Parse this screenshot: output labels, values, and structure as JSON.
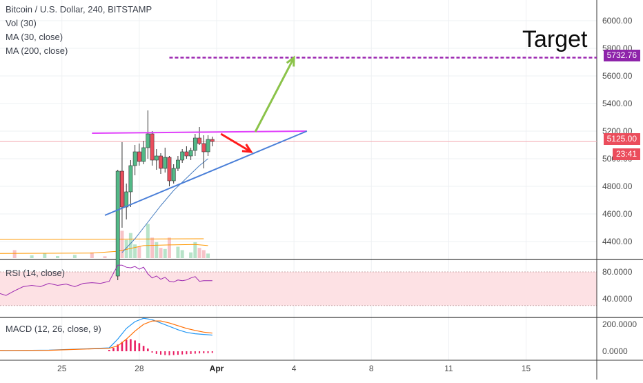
{
  "legend": {
    "symbol": "Bitcoin / U.S. Dollar, 240, BITSTAMP",
    "vol": "Vol (30)",
    "ma30": "MA (30, close)",
    "ma200": "MA (200, close)",
    "rsi": "RSI (14, close)",
    "macd": "MACD (12, 26, close, 9)"
  },
  "annotations": {
    "target_label": "Target",
    "target_price": "5732.76",
    "last_price": "5125.00",
    "countdown": "23:41"
  },
  "colors": {
    "up": "#53b987",
    "down": "#eb4d5c",
    "ma30": "#4a7fc1",
    "ma200": "#ff9800",
    "resistance": "#e040fb",
    "support": "#4a7fd8",
    "target": "#9c27b0",
    "arrow_down": "#ff1b1b",
    "arrow_up": "#8bc34a",
    "rsi": "#9c27b0",
    "macd": "#2196f3",
    "signal": "#ff6d00"
  },
  "chart_data": [
    {
      "type": "candlestick",
      "title": "Bitcoin / U.S. Dollar, 240, BITSTAMP",
      "x_ticks": [
        "25",
        "28",
        "Apr",
        "4",
        "8",
        "11",
        "15"
      ],
      "x_tick_index": [
        23,
        41,
        59,
        77,
        95,
        113,
        131
      ],
      "y_ticks": [
        "6000.00",
        "5800.00",
        "5600.00",
        "5400.00",
        "5200.00",
        "5000.00",
        "4800.00",
        "4600.00",
        "4400.00"
      ],
      "ylim": [
        4270,
        6080
      ],
      "grid": true,
      "last_price": 5125.0,
      "target_level": 5732.76,
      "candles": [
        {
          "i": 36,
          "o": 4150,
          "h": 4920,
          "l": 4120,
          "c": 4910
        },
        {
          "i": 37,
          "o": 4910,
          "h": 5120,
          "l": 4500,
          "c": 4650
        },
        {
          "i": 38,
          "o": 4650,
          "h": 4820,
          "l": 4560,
          "c": 4760
        },
        {
          "i": 39,
          "o": 4760,
          "h": 4990,
          "l": 4650,
          "c": 4950
        },
        {
          "i": 40,
          "o": 4950,
          "h": 5100,
          "l": 4880,
          "c": 5050
        },
        {
          "i": 41,
          "o": 5050,
          "h": 5110,
          "l": 4950,
          "c": 4980
        },
        {
          "i": 42,
          "o": 4980,
          "h": 5130,
          "l": 4960,
          "c": 5080
        },
        {
          "i": 43,
          "o": 5080,
          "h": 5350,
          "l": 5000,
          "c": 5180
        },
        {
          "i": 44,
          "o": 5180,
          "h": 5200,
          "l": 4950,
          "c": 4990
        },
        {
          "i": 45,
          "o": 4990,
          "h": 5070,
          "l": 4920,
          "c": 5020
        },
        {
          "i": 46,
          "o": 5020,
          "h": 5040,
          "l": 4890,
          "c": 4930
        },
        {
          "i": 47,
          "o": 4930,
          "h": 5080,
          "l": 4900,
          "c": 5010
        },
        {
          "i": 48,
          "o": 5010,
          "h": 5020,
          "l": 4800,
          "c": 4840
        },
        {
          "i": 49,
          "o": 4840,
          "h": 4960,
          "l": 4820,
          "c": 4930
        },
        {
          "i": 50,
          "o": 4930,
          "h": 5020,
          "l": 4910,
          "c": 4990
        },
        {
          "i": 51,
          "o": 4990,
          "h": 5070,
          "l": 4970,
          "c": 5050
        },
        {
          "i": 52,
          "o": 5050,
          "h": 5090,
          "l": 5000,
          "c": 5020
        },
        {
          "i": 53,
          "o": 5020,
          "h": 5080,
          "l": 4990,
          "c": 5060
        },
        {
          "i": 54,
          "o": 5060,
          "h": 5180,
          "l": 5020,
          "c": 5150
        },
        {
          "i": 55,
          "o": 5150,
          "h": 5230,
          "l": 5100,
          "c": 5110
        },
        {
          "i": 56,
          "o": 5110,
          "h": 5170,
          "l": 4930,
          "c": 5050
        },
        {
          "i": 57,
          "o": 5050,
          "h": 5170,
          "l": 5020,
          "c": 5140
        },
        {
          "i": 58,
          "o": 5140,
          "h": 5160,
          "l": 5090,
          "c": 5125
        }
      ],
      "ma30": [
        [
          37,
          4320
        ],
        [
          40,
          4420
        ],
        [
          43,
          4540
        ],
        [
          46,
          4660
        ],
        [
          49,
          4770
        ],
        [
          52,
          4860
        ],
        [
          55,
          4950
        ],
        [
          57,
          5000
        ]
      ],
      "ma200": [
        [
          0,
          4415
        ],
        [
          40,
          4418
        ],
        [
          56,
          4420
        ]
      ],
      "volumes": [
        {
          "i": 5,
          "v": 18
        },
        {
          "i": 8,
          "v": 10
        },
        {
          "i": 12,
          "v": 35
        },
        {
          "i": 16,
          "v": 12
        },
        {
          "i": 19,
          "v": 22
        },
        {
          "i": 22,
          "v": 9
        },
        {
          "i": 26,
          "v": 14
        },
        {
          "i": 30,
          "v": 25
        },
        {
          "i": 33,
          "v": 8
        },
        {
          "i": 36,
          "v": 230
        },
        {
          "i": 37,
          "v": 120
        },
        {
          "i": 38,
          "v": 80
        },
        {
          "i": 39,
          "v": 110
        },
        {
          "i": 40,
          "v": 60
        },
        {
          "i": 41,
          "v": 50
        },
        {
          "i": 43,
          "v": 150
        },
        {
          "i": 44,
          "v": 90
        },
        {
          "i": 45,
          "v": 70
        },
        {
          "i": 46,
          "v": 45
        },
        {
          "i": 47,
          "v": 40
        },
        {
          "i": 48,
          "v": 90
        },
        {
          "i": 50,
          "v": 50
        },
        {
          "i": 51,
          "v": 35
        },
        {
          "i": 53,
          "v": 25
        },
        {
          "i": 54,
          "v": 70
        },
        {
          "i": 55,
          "v": 45
        },
        {
          "i": 56,
          "v": 35
        },
        {
          "i": 57,
          "v": 20
        }
      ],
      "volume_ma": [
        [
          0,
          20
        ],
        [
          30,
          22
        ],
        [
          36,
          30
        ],
        [
          42,
          55
        ],
        [
          48,
          58
        ],
        [
          54,
          60
        ],
        [
          57,
          55
        ]
      ]
    },
    {
      "type": "line",
      "title": "RSI (14, close)",
      "y_ticks": [
        "80.0000",
        "40.0000"
      ],
      "ylim": [
        20,
        100
      ],
      "bands": [
        30,
        70
      ],
      "x": [
        0,
        2,
        4,
        6,
        8,
        10,
        12,
        14,
        16,
        18,
        20,
        22,
        24,
        26,
        28,
        30,
        32,
        34,
        36,
        37,
        38,
        39,
        40,
        41,
        42,
        43,
        44,
        45,
        46,
        47,
        48,
        49,
        50,
        51,
        52,
        53,
        54,
        55,
        56,
        58
      ],
      "values": [
        57,
        55,
        52,
        56,
        49,
        45,
        52,
        58,
        60,
        58,
        63,
        60,
        62,
        58,
        63,
        64,
        63,
        66,
        90,
        90,
        87,
        86,
        88,
        84,
        87,
        77,
        71,
        74,
        69,
        72,
        66,
        65,
        68,
        67,
        68,
        71,
        73,
        66,
        67,
        67
      ]
    },
    {
      "type": "line",
      "title": "MACD (12, 26, close, 9)",
      "y_ticks": [
        "200.0000",
        "0.0000"
      ],
      "ylim": [
        -40,
        280
      ],
      "series": [
        {
          "name": "MACD",
          "x": [
            0,
            10,
            20,
            30,
            34,
            36,
            38,
            40,
            42,
            44,
            46,
            48,
            50,
            52,
            54,
            56,
            58
          ],
          "values": [
            10,
            5,
            8,
            20,
            25,
            90,
            170,
            220,
            245,
            235,
            210,
            185,
            160,
            140,
            130,
            125,
            120
          ]
        },
        {
          "name": "Signal",
          "x": [
            0,
            10,
            20,
            30,
            34,
            36,
            38,
            40,
            42,
            44,
            46,
            48,
            50,
            52,
            54,
            56,
            58
          ],
          "values": [
            9,
            6,
            7,
            18,
            22,
            40,
            90,
            150,
            200,
            225,
            225,
            210,
            190,
            170,
            155,
            142,
            135
          ]
        }
      ],
      "histogram": [
        {
          "i": 34,
          "v": 10
        },
        {
          "i": 35,
          "v": 25
        },
        {
          "i": 36,
          "v": 50
        },
        {
          "i": 37,
          "v": 70
        },
        {
          "i": 38,
          "v": 85
        },
        {
          "i": 39,
          "v": 90
        },
        {
          "i": 40,
          "v": 80
        },
        {
          "i": 41,
          "v": 60
        },
        {
          "i": 42,
          "v": 40
        },
        {
          "i": 43,
          "v": 20
        },
        {
          "i": 44,
          "v": -10
        },
        {
          "i": 45,
          "v": -20
        },
        {
          "i": 46,
          "v": -25
        },
        {
          "i": 47,
          "v": -28
        },
        {
          "i": 48,
          "v": -30
        },
        {
          "i": 49,
          "v": -28
        },
        {
          "i": 50,
          "v": -26
        },
        {
          "i": 51,
          "v": -24
        },
        {
          "i": 52,
          "v": -22
        },
        {
          "i": 53,
          "v": -20
        },
        {
          "i": 54,
          "v": -18
        },
        {
          "i": 55,
          "v": -16
        },
        {
          "i": 56,
          "v": -15
        },
        {
          "i": 57,
          "v": -14
        },
        {
          "i": 58,
          "v": -12
        }
      ]
    }
  ],
  "drawings": {
    "resistance_line": [
      [
        30,
        5185
      ],
      [
        80,
        5200
      ]
    ],
    "support_line": [
      [
        33,
        4590
      ],
      [
        80,
        5200
      ]
    ],
    "down_arrow": [
      [
        60,
        5180
      ],
      [
        67,
        5050
      ]
    ],
    "up_arrow": [
      [
        68,
        5195
      ],
      [
        77,
        5732.76
      ]
    ],
    "target_line": [
      [
        48,
        5732.76
      ],
      [
        99,
        5732.76
      ]
    ]
  }
}
